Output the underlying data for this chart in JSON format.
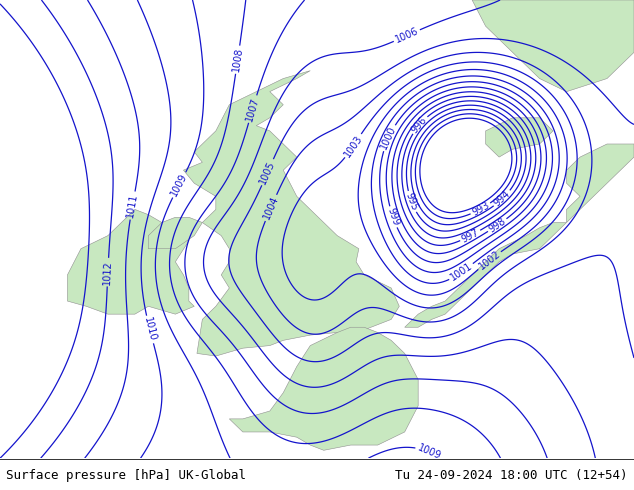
{
  "title_left": "Surface pressure [hPa] UK-Global",
  "title_right": "Tu 24-09-2024 18:00 UTC (12+54)",
  "bg_color": "#e0e0e8",
  "land_color": "#c8e8c0",
  "contour_color": "#1414cc",
  "contour_label_color": "#1414cc",
  "fig_width": 6.34,
  "fig_height": 4.9,
  "dpi": 100,
  "title_fontsize": 9,
  "contour_fontsize": 7,
  "contour_linewidth": 0.9,
  "lon_min": -13.0,
  "lon_max": 10.5,
  "lat_min": 46.0,
  "lat_max": 63.5
}
